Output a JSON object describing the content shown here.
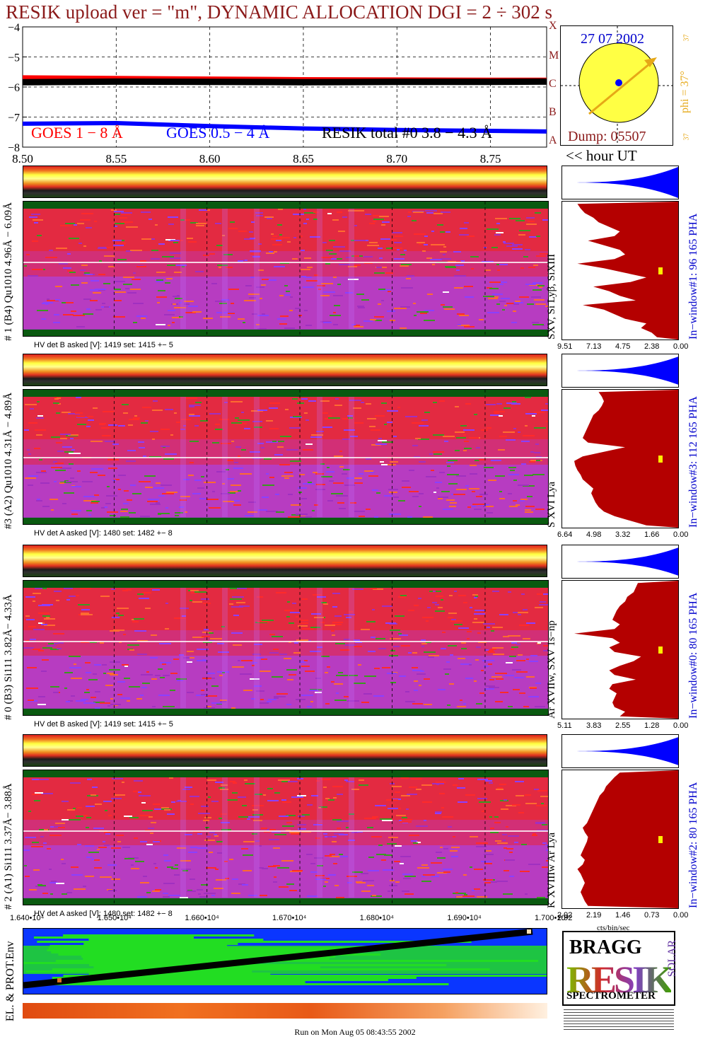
{
  "title": "RESIK upload ver = \"m\", DYNAMIC ALLOCATION  DGI =   2 ÷ 302 s",
  "colors": {
    "title": "#8b1a1a",
    "goes_red": "#ff0000",
    "goes_blue": "#0000ff",
    "resik_total": "#000000",
    "sun_disk": "#ffff44",
    "arrow": "#e6a817",
    "pha_blue": "#0000ff",
    "pha_red": "#b40000"
  },
  "top_chart": {
    "y_ticks": [
      "−4",
      "−5",
      "−6",
      "−7",
      "−8"
    ],
    "x_ticks": [
      "8.50",
      "8.55",
      "8.60",
      "8.65",
      "8.70",
      "8.75"
    ],
    "legend": {
      "goes1": "GOES 1 − 8 Å",
      "goes2": "GOES 0.5 − 4 Å",
      "resik": "RESIK total #0  3.8 − 4.3 Å"
    }
  },
  "chart_data": {
    "type": "line",
    "ylim": [
      -8,
      -4
    ],
    "xlim": [
      8.5,
      8.78
    ],
    "series": [
      {
        "name": "GOES 1 − 8 Å",
        "color": "#ff0000",
        "x": [
          8.5,
          8.55,
          8.6,
          8.65,
          8.7,
          8.75,
          8.78
        ],
        "y": [
          -5.68,
          -5.7,
          -5.72,
          -5.74,
          -5.75,
          -5.76,
          -5.76
        ]
      },
      {
        "name": "GOES 0.5 − 4 Å",
        "color": "#0000ff",
        "x": [
          8.5,
          8.55,
          8.6,
          8.65,
          8.7,
          8.75,
          8.78
        ],
        "y": [
          -7.22,
          -7.2,
          -7.3,
          -7.38,
          -7.43,
          -7.46,
          -7.48
        ]
      },
      {
        "name": "RESIK total #0  3.8 − 4.3 Å",
        "color": "#000000",
        "x": [
          8.5,
          8.55,
          8.6,
          8.65,
          8.7,
          8.75,
          8.78
        ],
        "y": [
          -5.84,
          -5.82,
          -5.83,
          -5.84,
          -5.83,
          -5.83,
          -5.82
        ]
      }
    ]
  },
  "sun_panel": {
    "date": "27 07 2002",
    "dump": "Dump: 05507",
    "phi": "phi = 37°",
    "phi_small_top": "37",
    "phi_small_bottom": "37",
    "axis_letters": [
      "X",
      "M",
      "C",
      "B",
      "A"
    ]
  },
  "hour_label": "<< hour UT",
  "detectors": [
    {
      "label": "# 1 (B4) Qu1010 4.96Å − 6.09Å",
      "line_label": "SXV, Si Lyβ, SiXIII",
      "hv": "HV det B asked [V]:  1419 set:  1415  +−    5",
      "window": "In−window#1:   96 165  PHA",
      "pha_ticks": [
        "9.51",
        "7.13",
        "4.75",
        "2.38",
        "0.00"
      ],
      "pha_profile": [
        0.2,
        0.25,
        0.35,
        0.3,
        0.5,
        0.6,
        0.7,
        0.9,
        0.4,
        0.55,
        0.65,
        0.8,
        0.45,
        0.3,
        0.5,
        0.7,
        0.95,
        0.6,
        0.5,
        0.55,
        0.7,
        0.85,
        0.6,
        0.55,
        0.65,
        0.75,
        0.8,
        0.88,
        0.92,
        0.95
      ]
    },
    {
      "label": "#3 (A2) Qu1010  4.31Å − 4.89Å",
      "line_label": "S XVI Lya",
      "hv": "HV det A asked [V]:  1480 set:  1482  +−    8",
      "window": "In−window#3:   112 165  PHA",
      "pha_ticks": [
        "6.64",
        "4.98",
        "3.32",
        "1.66",
        "0.00"
      ],
      "pha_profile": [
        0.3,
        0.45,
        0.6,
        0.7,
        0.75,
        0.78,
        0.8,
        0.82,
        0.8,
        0.85,
        0.9,
        0.92,
        0.95,
        0.97,
        0.98,
        0.9,
        0.7,
        0.5,
        0.85,
        0.9,
        0.88,
        0.86,
        0.84,
        0.82,
        0.8,
        0.75,
        0.72,
        0.7,
        0.72,
        0.75
      ]
    },
    {
      "label": "# 0 (B3) Si111  3.82Å− 4.33Å",
      "line_label": "Ar XVIIw,  SXV 1s−np",
      "hv": "HV det B asked [V]:  1419 set:  1415  +−    5",
      "window": "In−window#0:   80 165  PHA",
      "pha_ticks": [
        "5.11",
        "3.83",
        "2.55",
        "1.28",
        "0.00"
      ],
      "pha_profile": [
        0.55,
        0.5,
        0.6,
        0.62,
        0.6,
        0.58,
        0.65,
        0.62,
        0.4,
        0.6,
        0.65,
        0.55,
        0.42,
        0.35,
        0.6,
        0.65,
        0.55,
        0.62,
        0.98,
        0.6,
        0.55,
        0.62,
        0.6,
        0.58,
        0.55,
        0.5,
        0.48,
        0.42,
        0.4,
        0.38
      ]
    },
    {
      "label": "# 2 (A1) Si111  3.37Å− 3.88Å",
      "line_label": "K XVIIIw  Ar Lya",
      "hv": "HV det A asked [V]:  1480 set:  1482  +−    8",
      "window": "In−window#2:   80 165  PHA",
      "pha_ticks": [
        "2.92",
        "2.19",
        "1.46",
        "0.73",
        "0.00"
      ],
      "pha_profile": [
        0.85,
        0.88,
        0.9,
        0.92,
        0.9,
        0.88,
        0.9,
        0.92,
        0.95,
        0.9,
        0.88,
        0.92,
        0.9,
        0.88,
        0.86,
        0.85,
        0.88,
        0.9,
        0.86,
        0.84,
        0.82,
        0.8,
        0.78,
        0.76,
        0.74,
        0.7,
        0.68,
        0.64,
        0.6,
        0.55
      ]
    }
  ],
  "bottom_axis": {
    "ticks": [
      "1.640•10⁴",
      "1.650•10⁴",
      "1.660•10⁴",
      "1.670•10⁴",
      "1.680•10⁴",
      "1.690•10⁴",
      "1.700•10⁴"
    ],
    "right_tick": "2.92",
    "unit": "cts/bin/sec"
  },
  "env_label": "EL. & PROT.Env",
  "logo": {
    "text_main": "RESIK",
    "text_sub": "SPECTROMETER",
    "text_bragg": "BRAGG",
    "text_solar": "SOLAR"
  },
  "footer": "Run on Mon Aug 05 08:43:55 2002"
}
